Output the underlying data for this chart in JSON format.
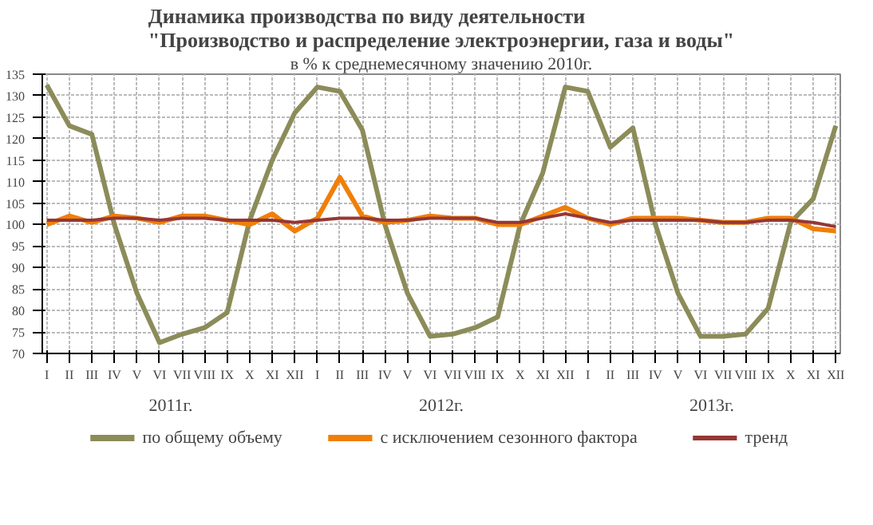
{
  "chart_data": {
    "type": "line",
    "title": "Динамика производства по виду деятельности\n\"Производство и распределение электроэнергии, газа и воды\"",
    "subtitle": "в % к среднемесячному значению 2010г.",
    "categories": [
      "I",
      "II",
      "III",
      "IV",
      "V",
      "VI",
      "VII",
      "VIII",
      "IX",
      "X",
      "XI",
      "XII",
      "I",
      "II",
      "III",
      "IV",
      "V",
      "VI",
      "VII",
      "VIII",
      "IX",
      "X",
      "XI",
      "XII",
      "I",
      "II",
      "III",
      "IV",
      "V",
      "VI",
      "VII",
      "VIII",
      "IX",
      "X",
      "XI",
      "XII"
    ],
    "annotations": [
      "2011г.",
      "2012г.",
      "2013г."
    ],
    "series": [
      {
        "name": "по общему объему",
        "color": "#8c8c5a",
        "values": [
          132.5,
          123,
          121,
          100,
          84,
          72.5,
          74.5,
          76,
          79.5,
          101,
          115,
          126,
          132,
          131,
          122,
          100,
          84,
          74,
          74.5,
          76,
          78.5,
          100,
          112,
          132,
          131,
          118,
          122.5,
          100,
          84,
          74,
          74,
          74.5,
          80.5,
          100.5,
          106,
          123
        ]
      },
      {
        "name": "с исключением  сезонного фактора",
        "color": "#f07f09",
        "values": [
          100,
          102,
          100.5,
          102,
          101.5,
          100.5,
          102,
          102,
          101,
          100,
          102.5,
          98.5,
          101.5,
          111,
          102,
          100.5,
          101,
          102,
          101.5,
          101.5,
          100,
          100,
          102,
          104,
          101.5,
          100,
          101.5,
          101.5,
          101.5,
          101,
          100.5,
          100.5,
          101.5,
          101.5,
          99,
          98.5
        ]
      },
      {
        "name": "тренд",
        "color": "#953735",
        "values": [
          101,
          101,
          101,
          101.5,
          101.5,
          101,
          101.5,
          101.5,
          101,
          101,
          101,
          100.5,
          101,
          101.5,
          101.5,
          101,
          101,
          101.5,
          101.5,
          101.5,
          100.5,
          100.5,
          101.5,
          102.5,
          101.5,
          100.5,
          101,
          101,
          101,
          101,
          100.5,
          100.5,
          101,
          101,
          100.5,
          99.5
        ]
      }
    ],
    "ylim": [
      70,
      135
    ],
    "yticks": [
      70,
      75,
      80,
      85,
      90,
      95,
      100,
      105,
      110,
      115,
      120,
      125,
      130,
      135
    ],
    "grid": true,
    "legend": "bottom"
  }
}
